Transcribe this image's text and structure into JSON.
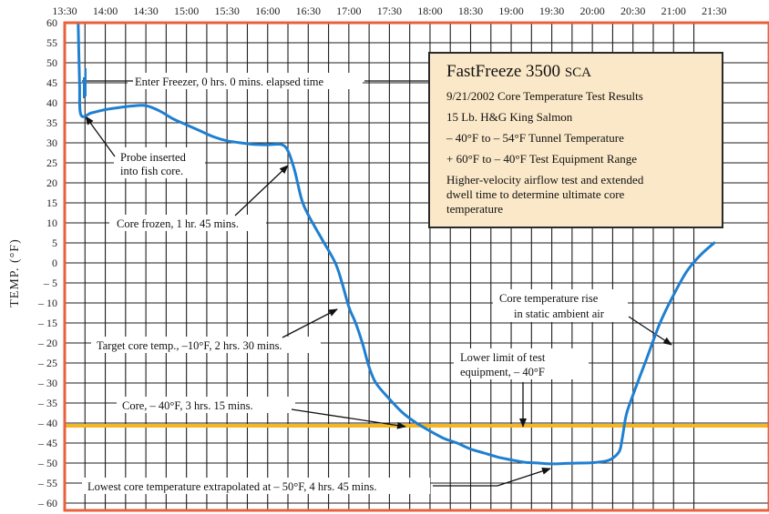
{
  "chart_data": {
    "type": "line",
    "title": "",
    "xlabel": "",
    "ylabel": "TEMP. (°F)",
    "x_tick_labels": [
      "13:30",
      "14:00",
      "14:30",
      "15:00",
      "15:30",
      "16:00",
      "16:30",
      "17:00",
      "17:30",
      "18:00",
      "18:30",
      "19:00",
      "19:30",
      "20:00",
      "20:30",
      "21:00",
      "21:30"
    ],
    "y_tick_labels": [
      "60",
      "55",
      "50",
      "45",
      "40",
      "35",
      "30",
      "25",
      "20",
      "15",
      "10",
      "5",
      "0",
      "– 5",
      "– 10",
      "– 15",
      "– 20",
      "– 25",
      "– 30",
      "– 35",
      "– 40",
      "– 45",
      "– 50",
      "– 55",
      "– 60"
    ],
    "xlim_minutes_after_1330": [
      0,
      470
    ],
    "ylim": [
      -60,
      60
    ],
    "grid": true,
    "series": [
      {
        "values_time_temp": [
          [
            "13:40",
            60
          ],
          [
            "13:41",
            45
          ],
          [
            "13:42",
            37
          ],
          [
            "13:50",
            37.5
          ],
          [
            "14:00",
            38.3
          ],
          [
            "14:10",
            38.8
          ],
          [
            "14:20",
            39.2
          ],
          [
            "14:30",
            39.3
          ],
          [
            "14:40",
            38
          ],
          [
            "14:50",
            36
          ],
          [
            "15:00",
            34.5
          ],
          [
            "15:10",
            33
          ],
          [
            "15:20",
            31.5
          ],
          [
            "15:30",
            30.5
          ],
          [
            "15:40",
            30
          ],
          [
            "15:50",
            29.6
          ],
          [
            "16:00",
            29.5
          ],
          [
            "16:10",
            29.6
          ],
          [
            "16:15",
            28
          ],
          [
            "16:20",
            23
          ],
          [
            "16:25",
            16
          ],
          [
            "16:30",
            12
          ],
          [
            "16:40",
            6
          ],
          [
            "16:50",
            0
          ],
          [
            "16:55",
            -5
          ],
          [
            "17:00",
            -11
          ],
          [
            "17:05",
            -15
          ],
          [
            "17:10",
            -20
          ],
          [
            "17:15",
            -26
          ],
          [
            "17:20",
            -30
          ],
          [
            "17:30",
            -34
          ],
          [
            "17:40",
            -37.5
          ],
          [
            "17:50",
            -40
          ],
          [
            "18:00",
            -42
          ],
          [
            "18:10",
            -43.8
          ],
          [
            "18:20",
            -45
          ],
          [
            "18:30",
            -46.5
          ],
          [
            "18:40",
            -47.5
          ],
          [
            "18:50",
            -48.5
          ],
          [
            "19:00",
            -49.2
          ],
          [
            "19:10",
            -49.8
          ],
          [
            "19:20",
            -50
          ],
          [
            "19:30",
            -50.2
          ],
          [
            "19:40",
            -50.1
          ],
          [
            "19:50",
            -50
          ],
          [
            "20:00",
            -49.9
          ],
          [
            "20:10",
            -49.5
          ],
          [
            "20:15",
            -48.8
          ],
          [
            "20:20",
            -47
          ],
          [
            "20:22",
            -44
          ],
          [
            "20:25",
            -38
          ],
          [
            "20:30",
            -33
          ],
          [
            "20:40",
            -24
          ],
          [
            "20:50",
            -15
          ],
          [
            "21:00",
            -8
          ],
          [
            "21:10",
            -2
          ],
          [
            "21:20",
            2
          ],
          [
            "21:30",
            5
          ]
        ]
      }
    ],
    "reference_line": {
      "value": -40,
      "color": "#f5b623"
    },
    "annotations": [
      {
        "text": "Enter Freezer, 0 hrs. 0 mins. elapsed time"
      },
      {
        "text": "Probe inserted"
      },
      {
        "text": "into fish core."
      },
      {
        "text": "Core frozen, 1 hr. 45 mins."
      },
      {
        "text": "Target core temp., –10°F, 2 hrs. 30 mins."
      },
      {
        "text": "Core, – 40°F, 3 hrs. 15 mins."
      },
      {
        "text": "Lowest core temperature extrapolated at – 50°F, 4 hrs. 45 mins."
      },
      {
        "text": "Lower limit of test"
      },
      {
        "text": "equipment, – 40°F"
      },
      {
        "text": "Core temperature rise"
      },
      {
        "text": "in static ambient air"
      }
    ],
    "colors": {
      "curve": "#1f7fd0",
      "border": "#e8603c",
      "grid": "#1e1e1e",
      "reference": "#f5b623",
      "box_bg": "#fbe8c8"
    }
  },
  "info_box": {
    "title": "FastFreeze 3500",
    "title_suffix": "SCA",
    "lines": [
      "9/21/2002 Core Temperature Test Results",
      "15 Lb. H&G King Salmon",
      "– 40°F to – 54°F Tunnel Temperature",
      "+ 60°F to – 40°F Test Equipment Range"
    ],
    "note": "Higher-velocity airflow test and extended dwell time to determine ultimate core temperature"
  }
}
